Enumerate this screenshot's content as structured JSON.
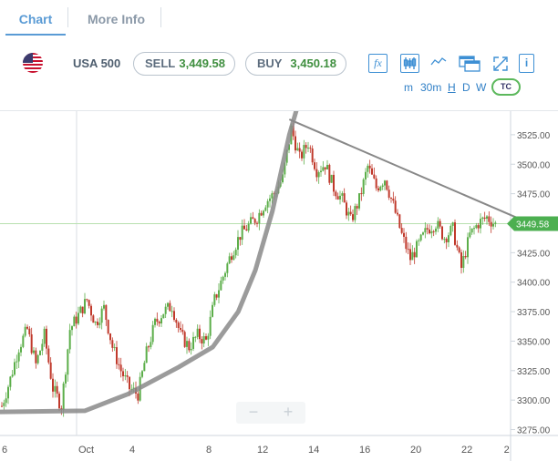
{
  "tabs": [
    {
      "label": "Chart",
      "active": true
    },
    {
      "label": "More Info",
      "active": false
    }
  ],
  "instrument": {
    "name": "USA 500",
    "flag_icon": "us-flag-icon"
  },
  "quote": {
    "sell_label": "SELL",
    "sell_value": "3,449.58",
    "buy_label": "BUY",
    "buy_value": "3,450.18"
  },
  "toolbar": {
    "fx_label": "fx",
    "icons": [
      "fx-icon",
      "candlestick-icon",
      "line-chart-icon",
      "windows-icon",
      "fullscreen-icon",
      "info-icon"
    ],
    "info_label": "i",
    "timeframes": [
      "m",
      "30m",
      "H",
      "D",
      "W"
    ],
    "active_timeframe": "H",
    "tc_label": "TC"
  },
  "colors": {
    "accent": "#3d8fd4",
    "up_candle": "#5cae4a",
    "down_candle": "#c0392b",
    "price_tag": "#4caf50",
    "trendline": "#888888"
  },
  "chart_data": {
    "type": "candlestick",
    "y_ticks": [
      "3525.00",
      "3500.00",
      "3475.00",
      "3450.00",
      "3425.00",
      "3400.00",
      "3375.00",
      "3350.00",
      "3325.00",
      "3300.00",
      "3275.00"
    ],
    "x_ticks": [
      "6",
      "Oct",
      "4",
      "8",
      "12",
      "14",
      "16",
      "20",
      "22",
      "2"
    ],
    "ylim": [
      3270,
      3545
    ],
    "current_price": "3449.58",
    "current_price_label": "3449.58",
    "close_path": [
      [
        0,
        3295
      ],
      [
        2,
        3318
      ],
      [
        4,
        3345
      ],
      [
        6,
        3360
      ],
      [
        8,
        3330
      ],
      [
        10,
        3355
      ],
      [
        12,
        3310
      ],
      [
        14,
        3295
      ],
      [
        16,
        3360
      ],
      [
        18,
        3372
      ],
      [
        20,
        3385
      ],
      [
        22,
        3365
      ],
      [
        24,
        3378
      ],
      [
        26,
        3345
      ],
      [
        28,
        3325
      ],
      [
        30,
        3310
      ],
      [
        32,
        3305
      ],
      [
        34,
        3340
      ],
      [
        36,
        3365
      ],
      [
        38,
        3375
      ],
      [
        40,
        3380
      ],
      [
        42,
        3355
      ],
      [
        44,
        3345
      ],
      [
        46,
        3355
      ],
      [
        48,
        3350
      ],
      [
        50,
        3385
      ],
      [
        52,
        3405
      ],
      [
        54,
        3425
      ],
      [
        56,
        3440
      ],
      [
        58,
        3448
      ],
      [
        60,
        3455
      ],
      [
        62,
        3468
      ],
      [
        64,
        3475
      ],
      [
        66,
        3488
      ],
      [
        68,
        3530
      ],
      [
        70,
        3505
      ],
      [
        72,
        3518
      ],
      [
        74,
        3495
      ],
      [
        76,
        3500
      ],
      [
        78,
        3480
      ],
      [
        80,
        3470
      ],
      [
        82,
        3452
      ],
      [
        84,
        3470
      ],
      [
        86,
        3498
      ],
      [
        88,
        3480
      ],
      [
        90,
        3488
      ],
      [
        92,
        3465
      ],
      [
        94,
        3440
      ],
      [
        96,
        3420
      ],
      [
        98,
        3432
      ],
      [
        100,
        3445
      ],
      [
        102,
        3450
      ],
      [
        104,
        3438
      ],
      [
        106,
        3445
      ],
      [
        108,
        3412
      ],
      [
        110,
        3440
      ],
      [
        112,
        3450
      ],
      [
        114,
        3455
      ],
      [
        116,
        3449
      ]
    ],
    "trendline": [
      [
        68,
        3538
      ],
      [
        116,
        3456
      ]
    ],
    "curve": [
      [
        0,
        3290
      ],
      [
        20,
        3291
      ],
      [
        30,
        3305
      ],
      [
        42,
        3328
      ],
      [
        50,
        3345
      ],
      [
        56,
        3375
      ],
      [
        60,
        3410
      ],
      [
        64,
        3460
      ],
      [
        68,
        3525
      ],
      [
        70,
        3550
      ]
    ],
    "grid_x": [
      18
    ]
  }
}
